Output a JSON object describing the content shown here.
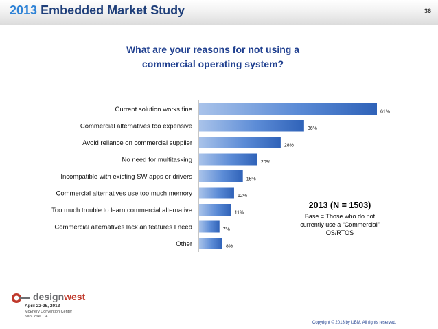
{
  "header": {
    "year": "2013",
    "title": "Embedded Market Study",
    "page_number": "36"
  },
  "question": {
    "line1_prefix": "What are your reasons for ",
    "line1_emphasis": "not",
    "line1_suffix": " using a",
    "line2": "commercial operating system?"
  },
  "chart_data": {
    "type": "bar",
    "orientation": "horizontal",
    "categories": [
      "Current solution works fine",
      "Commercial alternatives too expensive",
      "Avoid reliance on commercial supplier",
      "No need for multitasking",
      "Incompatible with existing SW apps or drivers",
      "Commercial alternatives use too much memory",
      "Too much trouble to learn commercial alternative",
      "Commercial alternatives lack an features I need",
      "Other"
    ],
    "values": [
      61,
      36,
      28,
      20,
      15,
      12,
      11,
      7,
      8
    ],
    "value_labels": [
      "61%",
      "36%",
      "28%",
      "20%",
      "15%",
      "12%",
      "11%",
      "7%",
      "8%"
    ],
    "xlim": [
      0,
      61
    ],
    "grid": false,
    "bar_color": "#3f73c8"
  },
  "note": {
    "heading": "2013 (N = 1503)",
    "line1": "Base = Those who do not",
    "line2": "currently use a “Commercial”",
    "line3": "OS/RTOS"
  },
  "logo": {
    "word_a": "design",
    "word_b": "west",
    "dates": "April 22-25, 2013",
    "venue1": "McEnery Convention Center",
    "venue2": "San Jose, CA"
  },
  "footer": {
    "copyright": "Copyright © 2013 by UBM. All rights reserved."
  }
}
